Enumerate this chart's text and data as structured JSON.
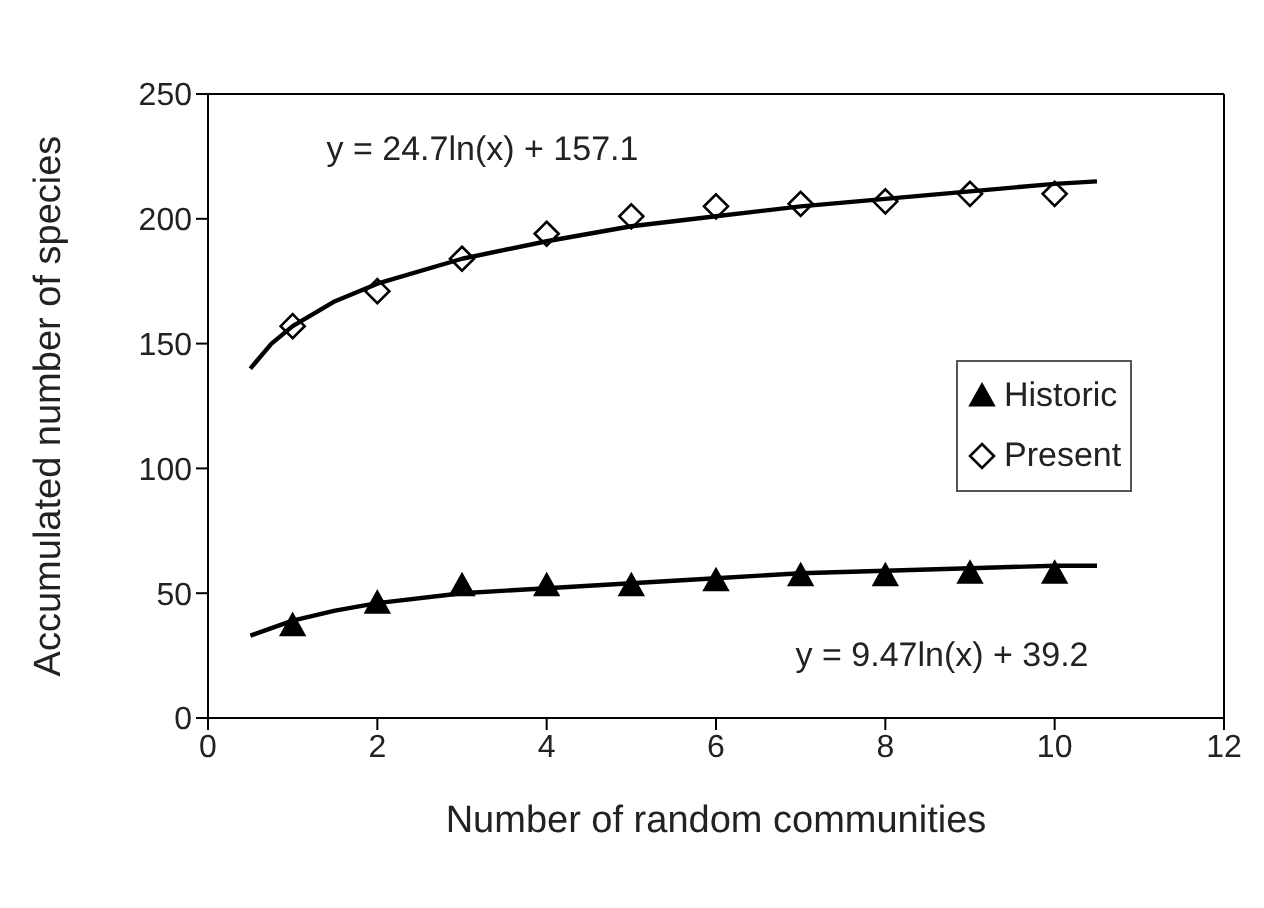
{
  "chart_data": {
    "type": "scatter",
    "xlabel": "Number of random communities",
    "ylabel": "Accumulated number of species",
    "xlim": [
      0,
      12
    ],
    "xticks": [
      0,
      2,
      4,
      6,
      8,
      10,
      12
    ],
    "ylim": [
      0,
      250
    ],
    "yticks": [
      0,
      50,
      100,
      150,
      200,
      250
    ],
    "grid": false,
    "legend": "right",
    "annotations": [
      "y = 24.7ln(x) + 157.1",
      "y = 9.47ln(x) + 39.2"
    ],
    "series": [
      {
        "name": "Historic",
        "marker": "triangle",
        "color": "#000000",
        "x": [
          1,
          2,
          3,
          4,
          5,
          6,
          7,
          8,
          9,
          10
        ],
        "values": [
          37,
          46,
          53,
          53,
          53,
          55,
          57,
          57,
          58,
          58
        ]
      },
      {
        "name": "Present",
        "marker": "diamond",
        "color": "#000000",
        "x": [
          1,
          2,
          3,
          4,
          5,
          6,
          7,
          8,
          9,
          10
        ],
        "values": [
          157,
          171,
          184,
          194,
          201,
          205,
          206,
          207,
          210,
          210
        ]
      },
      {
        "type": "line",
        "marker": "none",
        "color": "#000000",
        "x": [
          0.5,
          0.75,
          1,
          1.5,
          2,
          3,
          4,
          5,
          6,
          7,
          8,
          9,
          10,
          10.5
        ],
        "values": [
          140,
          150,
          157,
          167,
          174,
          184,
          191,
          197,
          201,
          205,
          208,
          211,
          214,
          215
        ]
      },
      {
        "type": "line",
        "marker": "none",
        "color": "#000000",
        "x": [
          0.5,
          0.75,
          1,
          1.5,
          2,
          3,
          4,
          5,
          6,
          7,
          8,
          9,
          10,
          10.5
        ],
        "values": [
          33,
          36,
          39,
          43,
          46,
          50,
          52,
          54,
          56,
          58,
          59,
          60,
          61,
          61
        ]
      }
    ]
  }
}
